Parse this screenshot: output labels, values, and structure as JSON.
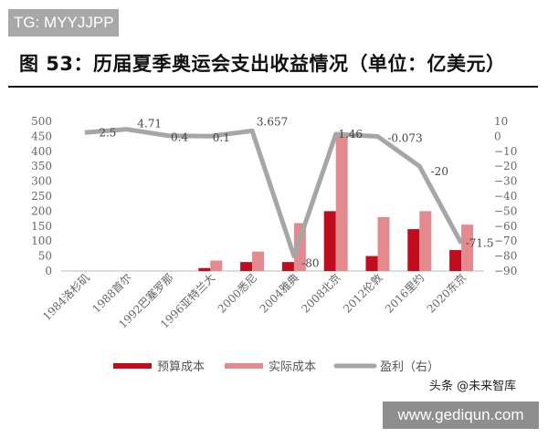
{
  "watermarks": {
    "top_left": "TG: MYYJJPP",
    "bottom_right": "www.gediqun.com",
    "source_overlay": "头条 @未来智库"
  },
  "header": {
    "title": "图 53：历届夏季奥运会支出收益情况（单位：亿美元）"
  },
  "legend": {
    "budget": "预算成本",
    "actual": "实际成本",
    "profit": "盈利（右）"
  },
  "colors": {
    "budget": "#c00d1e",
    "actual": "#e38a8f",
    "profit": "#a6a6a6"
  },
  "chart_data": {
    "type": "bar",
    "title": "图 53：历届夏季奥运会支出收益情况（单位：亿美元）",
    "categories": [
      "1984洛杉矶",
      "1988首尔",
      "1992巴塞罗那",
      "1996亚特兰大",
      "2000悉尼",
      "2004雅典",
      "2008北京",
      "2012伦敦",
      "2016里约",
      "2020东京"
    ],
    "series": [
      {
        "name": "预算成本",
        "type": "bar",
        "axis": "left",
        "values": [
          0,
          0,
          0,
          10,
          30,
          30,
          200,
          50,
          140,
          70
        ]
      },
      {
        "name": "实际成本",
        "type": "bar",
        "axis": "left",
        "values": [
          0,
          0,
          0,
          35,
          65,
          160,
          450,
          180,
          200,
          155
        ]
      },
      {
        "name": "盈利（右）",
        "type": "line",
        "axis": "right",
        "values": [
          2.5,
          4.71,
          0.4,
          0.1,
          3.657,
          -80,
          1.46,
          -0.073,
          -20,
          -71.5
        ]
      }
    ],
    "data_labels": [
      "2.5",
      "4.71",
      "0.4",
      "0.1",
      "3.657",
      "-80",
      "1.46",
      "-0.073",
      "-20",
      "-71.5"
    ],
    "left_axis": {
      "ylim": [
        0,
        500
      ],
      "ticks": [
        "500",
        "450",
        "400",
        "350",
        "300",
        "250",
        "200",
        "150",
        "100",
        "50",
        "0"
      ]
    },
    "right_axis": {
      "ylim": [
        -90,
        10
      ],
      "ticks": [
        "10",
        "0",
        "-10",
        "-20",
        "-30",
        "-40",
        "-50",
        "-60",
        "-70",
        "-80",
        "-90"
      ]
    },
    "xlabel": "",
    "ylabel": "",
    "grid": false,
    "legend_position": "bottom"
  }
}
